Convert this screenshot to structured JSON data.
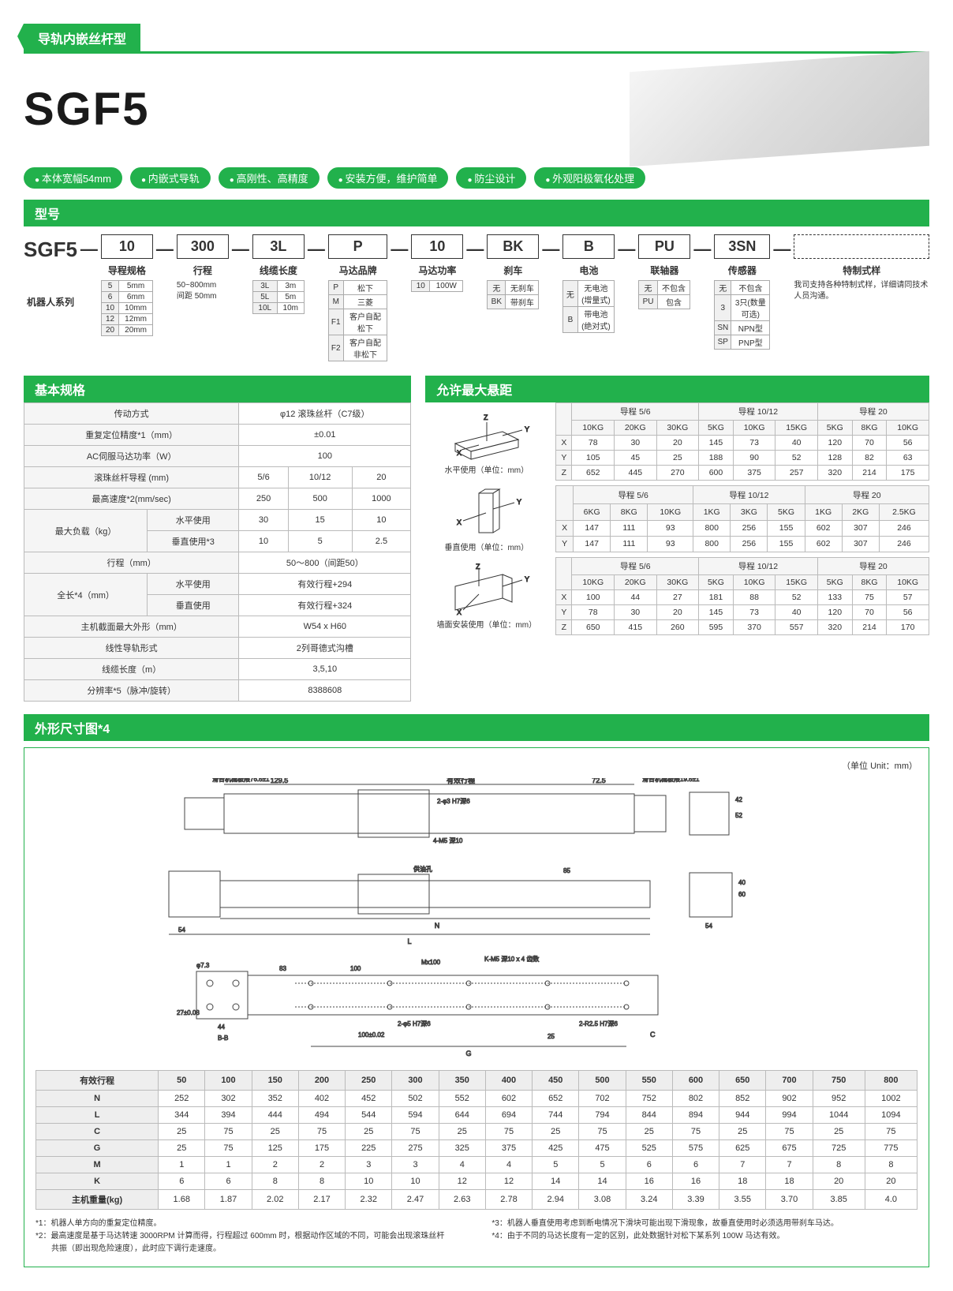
{
  "colors": {
    "green": "#22b14c",
    "border": "#bbb",
    "lblbg": "#f5f5f5"
  },
  "header": {
    "category": "导轨内嵌丝杆型"
  },
  "title": "SGF5",
  "pills": [
    "本体宽幅54mm",
    "内嵌式导轨",
    "高刚性、高精度",
    "安装方便，维护简单",
    "防尘设计",
    "外观阳极氧化处理"
  ],
  "model_sec": "型号",
  "model_base": "SGF5",
  "model_series_label": "机器人系列",
  "model_parts": [
    {
      "val": "10",
      "label": "导程规格",
      "opts": [
        [
          "5",
          "5mm"
        ],
        [
          "6",
          "6mm"
        ],
        [
          "10",
          "10mm"
        ],
        [
          "12",
          "12mm"
        ],
        [
          "20",
          "20mm"
        ]
      ]
    },
    {
      "val": "300",
      "label": "行程",
      "note": "50~800mm\n间距 50mm"
    },
    {
      "val": "3L",
      "label": "线缆长度",
      "opts": [
        [
          "3L",
          "3m"
        ],
        [
          "5L",
          "5m"
        ],
        [
          "10L",
          "10m"
        ]
      ]
    },
    {
      "val": "P",
      "label": "马达品牌",
      "opts": [
        [
          "P",
          "松下"
        ],
        [
          "M",
          "三菱"
        ],
        [
          "F1",
          "客户自配松下"
        ],
        [
          "F2",
          "客户自配非松下"
        ]
      ]
    },
    {
      "val": "10",
      "label": "马达功率",
      "opts": [
        [
          "10",
          "100W"
        ]
      ]
    },
    {
      "val": "BK",
      "label": "刹车",
      "opts": [
        [
          "无",
          "无刹车"
        ],
        [
          "BK",
          "带刹车"
        ]
      ]
    },
    {
      "val": "B",
      "label": "电池",
      "opts": [
        [
          "无",
          "无电池\n(增量式)"
        ],
        [
          "B",
          "带电池\n(绝对式)"
        ]
      ]
    },
    {
      "val": "PU",
      "label": "联轴器",
      "opts": [
        [
          "无",
          "不包含"
        ],
        [
          "PU",
          "包含"
        ]
      ]
    },
    {
      "val": "3SN",
      "label": "传感器",
      "opts": [
        [
          "无",
          "不包含"
        ],
        [
          "3",
          "3只(数量可选)"
        ],
        [
          "SN",
          "NPN型"
        ],
        [
          "SP",
          "PNP型"
        ]
      ]
    },
    {
      "val": "",
      "label": "特制式样",
      "dashed": true,
      "note": "我司支持各种特制式样，详细请同技术人员沟通。"
    }
  ],
  "basic_spec_title": "基本规格",
  "basic_specs": [
    {
      "k": "传动方式",
      "v": [
        "φ12 滚珠丝杆（C7级）"
      ],
      "span": 3
    },
    {
      "k": "重复定位精度*1（mm）",
      "v": [
        "±0.01"
      ],
      "span": 3
    },
    {
      "k": "AC伺服马达功率（W）",
      "v": [
        "100"
      ],
      "span": 3
    },
    {
      "k": "滚珠丝杆导程 (mm)",
      "v": [
        "5/6",
        "10/12",
        "20"
      ]
    },
    {
      "k": "最高速度*2(mm/sec)",
      "v": [
        "250",
        "500",
        "1000"
      ]
    },
    {
      "k": "最大负载（kg）",
      "sub": "水平使用",
      "v": [
        "30",
        "15",
        "10"
      ]
    },
    {
      "k": "",
      "sub": "垂直使用*3",
      "v": [
        "10",
        "5",
        "2.5"
      ]
    },
    {
      "k": "行程（mm）",
      "v": [
        "50～800（间距50）"
      ],
      "span": 3
    },
    {
      "k": "全长*4（mm）",
      "sub": "水平使用",
      "v": [
        "有效行程+294"
      ],
      "span": 3
    },
    {
      "k": "",
      "sub": "垂直使用",
      "v": [
        "有效行程+324"
      ],
      "span": 3
    },
    {
      "k": "主机截面最大外形（mm）",
      "v": [
        "W54 x H60"
      ],
      "span": 3
    },
    {
      "k": "线性导轨形式",
      "v": [
        "2列哥德式沟槽"
      ],
      "span": 3
    },
    {
      "k": "线缆长度（m）",
      "v": [
        "3,5,10"
      ],
      "span": 3
    },
    {
      "k": "分辨率*5（脉冲/旋转）",
      "v": [
        "8388608"
      ],
      "span": 3
    }
  ],
  "overhang_title": "允许最大悬距",
  "overhang": [
    {
      "caption": "水平使用（单位：mm）",
      "diag": "horiz",
      "groups": [
        {
          "title": "导程 5/6",
          "heads": [
            "10KG",
            "20KG",
            "30KG"
          ]
        },
        {
          "title": "导程 10/12",
          "heads": [
            "5KG",
            "10KG",
            "15KG"
          ]
        },
        {
          "title": "导程 20",
          "heads": [
            "5KG",
            "8KG",
            "10KG"
          ]
        }
      ],
      "rows": [
        [
          "X",
          "78",
          "30",
          "20",
          "145",
          "73",
          "40",
          "120",
          "70",
          "56"
        ],
        [
          "Y",
          "105",
          "45",
          "25",
          "188",
          "90",
          "52",
          "128",
          "82",
          "63"
        ],
        [
          "Z",
          "652",
          "445",
          "270",
          "600",
          "375",
          "257",
          "320",
          "214",
          "175"
        ]
      ]
    },
    {
      "caption": "垂直使用（单位：mm）",
      "diag": "vert",
      "groups": [
        {
          "title": "导程 5/6",
          "heads": [
            "6KG",
            "8KG",
            "10KG"
          ]
        },
        {
          "title": "导程 10/12",
          "heads": [
            "1KG",
            "3KG",
            "5KG"
          ]
        },
        {
          "title": "导程 20",
          "heads": [
            "1KG",
            "2KG",
            "2.5KG"
          ]
        }
      ],
      "rows": [
        [
          "X",
          "147",
          "111",
          "93",
          "800",
          "256",
          "155",
          "602",
          "307",
          "246"
        ],
        [
          "Y",
          "147",
          "111",
          "93",
          "800",
          "256",
          "155",
          "602",
          "307",
          "246"
        ]
      ]
    },
    {
      "caption": "墙面安装使用（单位：mm）",
      "diag": "wall",
      "groups": [
        {
          "title": "导程 5/6",
          "heads": [
            "10KG",
            "20KG",
            "30KG"
          ]
        },
        {
          "title": "导程 10/12",
          "heads": [
            "5KG",
            "10KG",
            "15KG"
          ]
        },
        {
          "title": "导程 20",
          "heads": [
            "5KG",
            "8KG",
            "10KG"
          ]
        }
      ],
      "rows": [
        [
          "X",
          "100",
          "44",
          "27",
          "181",
          "88",
          "52",
          "133",
          "75",
          "57"
        ],
        [
          "Y",
          "78",
          "30",
          "20",
          "145",
          "73",
          "40",
          "120",
          "70",
          "56"
        ],
        [
          "Z",
          "650",
          "415",
          "260",
          "595",
          "370",
          "557",
          "320",
          "214",
          "170"
        ]
      ]
    }
  ],
  "dim_title": "外形尺寸图*4",
  "dim_unit": "（单位 Unit：mm）",
  "dim_labels": {
    "top1": "129.5",
    "top2": "有效行程",
    "top3": "72.5",
    "topL": "滑台机械极限76.5±1",
    "topR": "滑台机械极限19.5±1",
    "h1": "2-φ3 H7深6",
    "h2": "4-M5 深10",
    "h3": "供油孔",
    "n": "N",
    "l": "L",
    "w54": "54",
    "h60": "60",
    "dim83": "83",
    "mx100": "Mx100",
    "dim100": "100",
    "dim85": "85",
    "k": "K-M5 深10 x 4 齿数",
    "phi5": "2-φ5 H7深6",
    "r25": "2-R2.5 H7深6",
    "g": "G",
    "c": "C",
    "dim25": "25",
    "phi73": "φ7.3",
    "dim27": "27±0.03",
    "dim44": "44",
    "dim52": "52",
    "dim42": "42",
    "dim40": "40",
    "bb": "B-B",
    "h100": "100±0.02"
  },
  "dim_table": {
    "header": [
      "有效行程",
      "50",
      "100",
      "150",
      "200",
      "250",
      "300",
      "350",
      "400",
      "450",
      "500",
      "550",
      "600",
      "650",
      "700",
      "750",
      "800"
    ],
    "rows": [
      [
        "N",
        "252",
        "302",
        "352",
        "402",
        "452",
        "502",
        "552",
        "602",
        "652",
        "702",
        "752",
        "802",
        "852",
        "902",
        "952",
        "1002"
      ],
      [
        "L",
        "344",
        "394",
        "444",
        "494",
        "544",
        "594",
        "644",
        "694",
        "744",
        "794",
        "844",
        "894",
        "944",
        "994",
        "1044",
        "1094"
      ],
      [
        "C",
        "25",
        "75",
        "25",
        "75",
        "25",
        "75",
        "25",
        "75",
        "25",
        "75",
        "25",
        "75",
        "25",
        "75",
        "25",
        "75"
      ],
      [
        "G",
        "25",
        "75",
        "125",
        "175",
        "225",
        "275",
        "325",
        "375",
        "425",
        "475",
        "525",
        "575",
        "625",
        "675",
        "725",
        "775"
      ],
      [
        "M",
        "1",
        "1",
        "2",
        "2",
        "3",
        "3",
        "4",
        "4",
        "5",
        "5",
        "6",
        "6",
        "7",
        "7",
        "8",
        "8"
      ],
      [
        "K",
        "6",
        "6",
        "8",
        "8",
        "10",
        "10",
        "12",
        "12",
        "14",
        "14",
        "16",
        "16",
        "18",
        "18",
        "20",
        "20"
      ],
      [
        "主机重量(kg)",
        "1.68",
        "1.87",
        "2.02",
        "2.17",
        "2.32",
        "2.47",
        "2.63",
        "2.78",
        "2.94",
        "3.08",
        "3.24",
        "3.39",
        "3.55",
        "3.70",
        "3.85",
        "4.0"
      ]
    ]
  },
  "footnotes": {
    "left": [
      "*1：机器人单方向的重复定位精度。",
      "*2：最高速度是基于马达转速 3000RPM 计算而得，行程超过 600mm 时，根据动作区域的不同，可能会出现滚珠丝杆\n　　共振（即出现危险速度），此时应下调行走速度。"
    ],
    "right": [
      "*3：机器人垂直使用考虑到断电情况下滑块可能出现下滑现象，故垂直使用时必须选用带刹车马达。",
      "*4：由于不同的马达长度有一定的区别，此处数据针对松下某系列 100W 马达有效。"
    ]
  }
}
